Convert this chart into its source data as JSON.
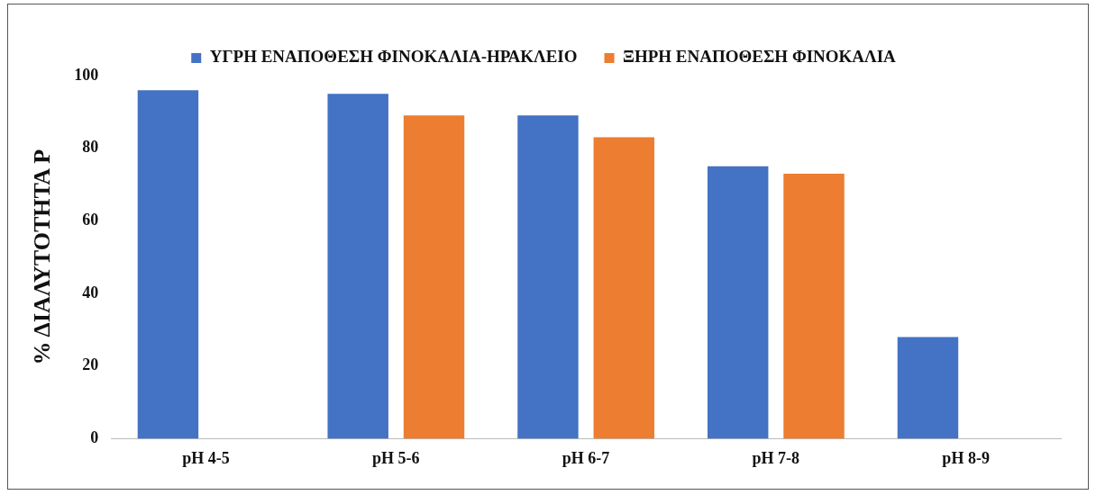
{
  "chart_data": {
    "type": "bar",
    "ylabel": "% ΔΙΑΛΥΤΟΤΗΤΑ P",
    "categories": [
      "pH 4-5",
      "pH 5-6",
      "pH 6-7",
      "pH 7-8",
      "pH 8-9"
    ],
    "series": [
      {
        "name": "ΥΓΡΗ ΕΝΑΠΟΘΕΣΗ ΦΙΝΟΚΑΛΙΑ-ΗΡΑΚΛΕΙΟ",
        "color": "#4472c4",
        "values": [
          96,
          95,
          89,
          75,
          28
        ]
      },
      {
        "name": "ΞΗΡΗ ΕΝΑΠΟΘΕΣΗ ΦΙΝΟΚΑΛΙΑ",
        "color": "#ed7d31",
        "values": [
          null,
          89,
          83,
          73,
          null
        ]
      }
    ],
    "ylim": [
      0,
      100
    ],
    "yticks": [
      0,
      20,
      40,
      60,
      80,
      100
    ],
    "grid": false,
    "legend": "top"
  }
}
